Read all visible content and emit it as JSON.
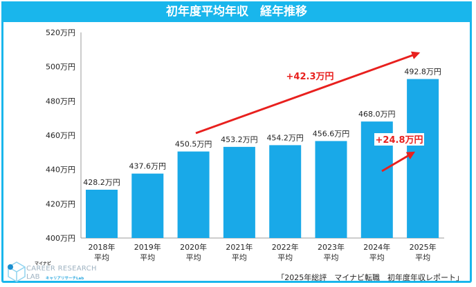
{
  "chart_data": {
    "type": "bar",
    "title": "初年度平均年収　経年推移",
    "categories": [
      "2018年\n平均",
      "2019年\n平均",
      "2020年\n平均",
      "2021年\n平均",
      "2022年\n平均",
      "2023年\n平均",
      "2024年\n平均",
      "2025年\n平均"
    ],
    "values": [
      428.2,
      437.6,
      450.5,
      453.2,
      454.2,
      456.6,
      468.0,
      492.8
    ],
    "data_labels": [
      "428.2万円",
      "437.6万円",
      "450.5万円",
      "453.2万円",
      "454.2万円",
      "456.6万円",
      "468.0万円",
      "492.8万円"
    ],
    "yticks": [
      400,
      420,
      440,
      460,
      480,
      500,
      520
    ],
    "ytick_labels": [
      "400万円",
      "420万円",
      "440万円",
      "460万円",
      "480万円",
      "500万円",
      "520万円"
    ],
    "ylim": [
      400,
      520
    ],
    "grid": false,
    "bar_color": "#19a9e8",
    "annotations": [
      {
        "text": "+42.3万円",
        "from": "2020年",
        "to": "2025年",
        "color": "#e8201e"
      },
      {
        "text": "+24.8万円",
        "from": "2024年",
        "to": "2025年",
        "color": "#e8201e"
      }
    ]
  },
  "logo": {
    "brand": "マイナビ",
    "line1": "CAREER RESEARCH",
    "line2": "LAB",
    "sub": "キャリアリサーチLab"
  },
  "source": "「2025年総評　マイナビ転職　初年度年収レポート」",
  "colors": {
    "frame": "#19b6ec",
    "accent": "#e8201e"
  }
}
